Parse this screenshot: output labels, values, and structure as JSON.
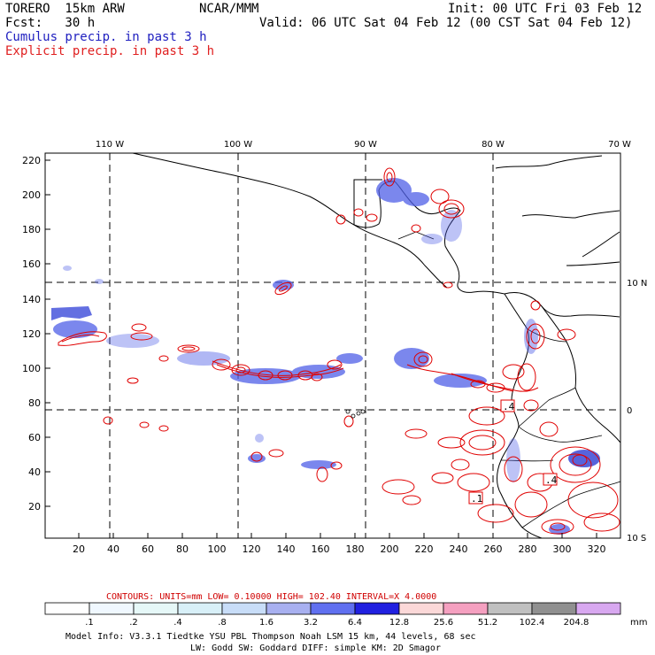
{
  "header": {
    "model": "TORERO  15km ARW",
    "center": "NCAR/MMM",
    "init": "Init: 00 UTC Fri 03 Feb 12",
    "fcst": "Fcst:   30 h",
    "valid": "Valid: 06 UTC Sat 04 Feb 12 (00 CST Sat 04 Feb 12)",
    "line1": "Cumulus precip. in past 3 h",
    "line2": "Explicit precip. in past 3 h"
  },
  "map": {
    "lon_labels": [
      "110 W",
      "100 W",
      "90 W",
      "80 W",
      "70 W"
    ],
    "lat_labels": [
      "10 N",
      "0",
      "10 S"
    ],
    "y_ticks": [
      "220",
      "200",
      "180",
      "160",
      "140",
      "120",
      "100",
      "80",
      "60",
      "40",
      "20"
    ],
    "x_ticks": [
      "20",
      "40",
      "60",
      "80",
      "100",
      "120",
      "140",
      "160",
      "180",
      "200",
      "220",
      "240",
      "260",
      "280",
      "300",
      "320"
    ],
    "box_labels": [
      ".4",
      ".4",
      ".1"
    ],
    "colors": {
      "cumulus": "#4050e0",
      "explicit": "#e00000"
    }
  },
  "contours": {
    "text": "CONTOURS:  UNITS=mm  LOW= 0.10000      HIGH=  102.40      INTERVAL=X  4.0000"
  },
  "colorbar": {
    "labels": [
      ".1",
      ".2",
      ".4",
      ".8",
      "1.6",
      "3.2",
      "6.4",
      "12.8",
      "25.6",
      "51.2",
      "102.4",
      "204.8"
    ],
    "unit": "mm",
    "colors": [
      "#ffffff",
      "#f0f8ff",
      "#e6f8f8",
      "#d8f0f8",
      "#c8ddf8",
      "#a8b0f0",
      "#6070f0",
      "#2020e0",
      "#fbd8d8",
      "#f5a0c0",
      "#c0c0c0",
      "#909090",
      "#d8a8f0"
    ]
  },
  "footer": {
    "line1": "Model Info: V3.3.1    Tiedtke YSU PBL  Thompson     Noah LSM  15 km,   44 levels,   68 sec",
    "line2": "LW: Godd SW: Goddard DIFF: simple KM: 2D Smagor"
  }
}
